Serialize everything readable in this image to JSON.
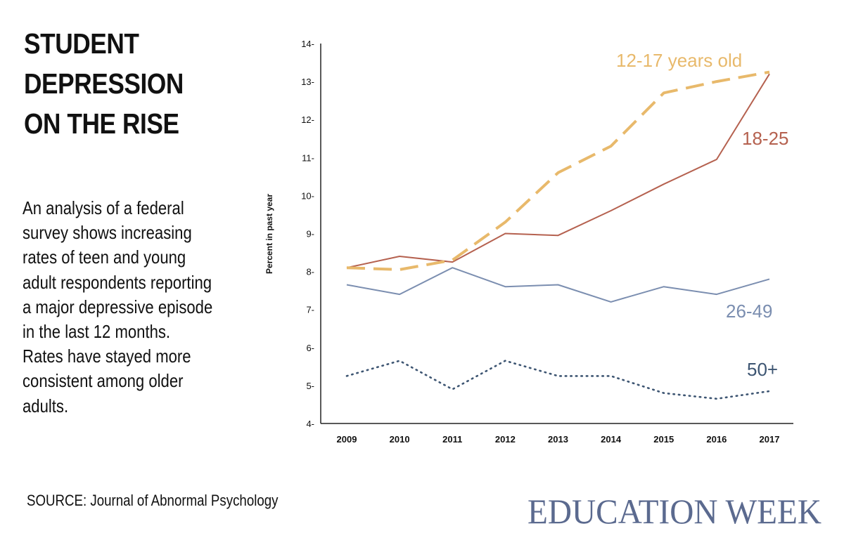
{
  "headline": {
    "lines": [
      "STUDENT",
      "DEPRESSION",
      "ON THE RISE"
    ]
  },
  "description": {
    "lines": [
      "An analysis of a federal",
      "survey shows increasing",
      "rates of teen and young",
      "adult respondents reporting",
      "a major depressive episode",
      "in the last 12 months.",
      "Rates have stayed more",
      "consistent among older",
      "adults."
    ]
  },
  "source": "SOURCE: Journal of Abnormal Psychology",
  "logo": {
    "text": "EDUCATION WEEK",
    "color": "#5b6a8f"
  },
  "chart_data": {
    "type": "line",
    "title": "",
    "xlabel": "",
    "ylabel": "Percent in past year",
    "ylim": [
      4,
      14
    ],
    "yticks": [
      "4-",
      "5-",
      "6-",
      "7-",
      "8-",
      "9-",
      "10-",
      "11-",
      "12-",
      "13-",
      "14-"
    ],
    "categories": [
      "2009",
      "2010",
      "2011",
      "2012",
      "2013",
      "2014",
      "2015",
      "2016",
      "2017"
    ],
    "grid": false,
    "series": [
      {
        "name": "12-17 years old",
        "style": "dashed",
        "color": "#e8b96b",
        "values": [
          8.1,
          8.05,
          8.3,
          9.3,
          10.6,
          11.3,
          12.7,
          13.0,
          13.25
        ]
      },
      {
        "name": "18-25",
        "style": "solid",
        "color": "#b5614f",
        "values": [
          8.1,
          8.4,
          8.25,
          9.0,
          8.95,
          9.6,
          10.3,
          10.95,
          13.2
        ]
      },
      {
        "name": "26-49",
        "style": "solid",
        "color": "#7b8eb0",
        "values": [
          7.65,
          7.4,
          8.1,
          7.6,
          7.65,
          7.2,
          7.6,
          7.4,
          7.8
        ]
      },
      {
        "name": "50+",
        "style": "dotted",
        "color": "#3d5572",
        "values": [
          5.25,
          5.65,
          4.9,
          5.65,
          5.25,
          5.25,
          4.8,
          4.65,
          4.85
        ]
      }
    ]
  }
}
